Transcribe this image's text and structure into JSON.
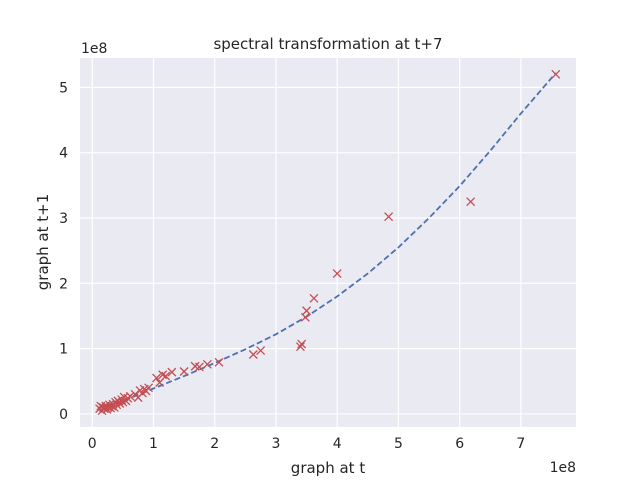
{
  "chart_data": {
    "type": "scatter",
    "title": "spectral transformation at t+7",
    "xlabel": "graph at t",
    "ylabel": "graph at t+1",
    "x_offset_label": "1e8",
    "y_offset_label": "1e8",
    "xlim": [
      -0.2,
      7.9
    ],
    "ylim": [
      -0.2,
      5.45
    ],
    "xticks": [
      0,
      1,
      2,
      3,
      4,
      5,
      6,
      7
    ],
    "yticks": [
      0,
      1,
      2,
      3,
      4,
      5
    ],
    "grid": true,
    "colors": {
      "background": "#eaeaf2",
      "grid": "#ffffff",
      "points": "#c44e52",
      "fit": "#4c72b0"
    },
    "series": [
      {
        "marker": "x",
        "points": [
          [
            0.12,
            0.08
          ],
          [
            0.14,
            0.12
          ],
          [
            0.16,
            0.05
          ],
          [
            0.18,
            0.1
          ],
          [
            0.2,
            0.08
          ],
          [
            0.22,
            0.12
          ],
          [
            0.24,
            0.07
          ],
          [
            0.26,
            0.1
          ],
          [
            0.28,
            0.14
          ],
          [
            0.3,
            0.09
          ],
          [
            0.32,
            0.12
          ],
          [
            0.34,
            0.15
          ],
          [
            0.36,
            0.1
          ],
          [
            0.38,
            0.18
          ],
          [
            0.4,
            0.14
          ],
          [
            0.42,
            0.2
          ],
          [
            0.45,
            0.16
          ],
          [
            0.48,
            0.22
          ],
          [
            0.5,
            0.18
          ],
          [
            0.52,
            0.26
          ],
          [
            0.55,
            0.2
          ],
          [
            0.58,
            0.24
          ],
          [
            0.62,
            0.27
          ],
          [
            0.7,
            0.3
          ],
          [
            0.75,
            0.25
          ],
          [
            0.78,
            0.36
          ],
          [
            0.82,
            0.32
          ],
          [
            0.85,
            0.38
          ],
          [
            0.88,
            0.35
          ],
          [
            0.92,
            0.4
          ],
          [
            1.05,
            0.55
          ],
          [
            1.1,
            0.48
          ],
          [
            1.15,
            0.6
          ],
          [
            1.2,
            0.58
          ],
          [
            1.3,
            0.64
          ],
          [
            1.5,
            0.65
          ],
          [
            1.68,
            0.73
          ],
          [
            1.75,
            0.72
          ],
          [
            1.88,
            0.76
          ],
          [
            2.07,
            0.79
          ],
          [
            2.63,
            0.91
          ],
          [
            2.75,
            0.97
          ],
          [
            3.4,
            1.03
          ],
          [
            3.42,
            1.07
          ],
          [
            3.48,
            1.48
          ],
          [
            3.5,
            1.58
          ],
          [
            3.62,
            1.77
          ],
          [
            4.0,
            2.15
          ],
          [
            4.84,
            3.02
          ],
          [
            6.18,
            3.25
          ],
          [
            7.57,
            5.2
          ]
        ]
      },
      {
        "style": "dashed",
        "points": [
          [
            0.12,
            0.05
          ],
          [
            0.5,
            0.2
          ],
          [
            1.0,
            0.39
          ],
          [
            1.5,
            0.58
          ],
          [
            2.0,
            0.78
          ],
          [
            2.5,
            0.99
          ],
          [
            3.0,
            1.22
          ],
          [
            3.5,
            1.49
          ],
          [
            4.0,
            1.8
          ],
          [
            4.5,
            2.15
          ],
          [
            5.0,
            2.55
          ],
          [
            5.5,
            3.0
          ],
          [
            6.0,
            3.49
          ],
          [
            6.5,
            4.03
          ],
          [
            7.0,
            4.6
          ],
          [
            7.57,
            5.22
          ]
        ]
      }
    ]
  }
}
